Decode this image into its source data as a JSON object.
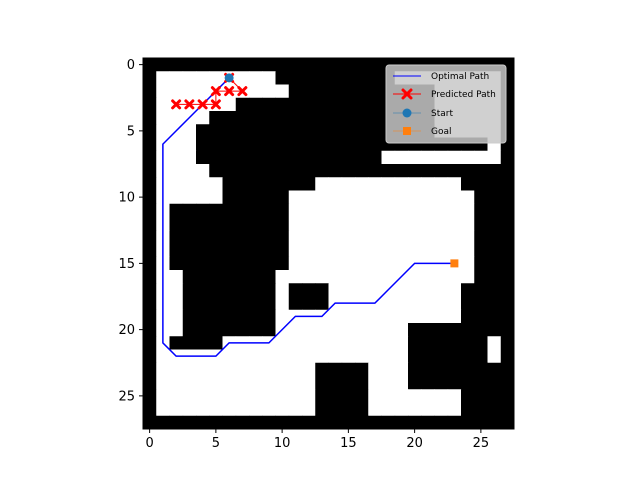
{
  "chart_data": {
    "type": "heatmap",
    "title": "",
    "xlabel": "",
    "ylabel": "",
    "grid": false,
    "legend_placement": "upper right",
    "x_range": [
      -0.5,
      27.5
    ],
    "y_range": [
      27.5,
      -0.5
    ],
    "x_ticks": [
      0,
      5,
      10,
      15,
      20,
      25
    ],
    "y_ticks": [
      0,
      5,
      10,
      15,
      20,
      25
    ],
    "grid_size": [
      28,
      28
    ],
    "obstacle_rows": [
      [
        0,
        0,
        0,
        0,
        0,
        0,
        0,
        0,
        0,
        0,
        0,
        0,
        0,
        0,
        0,
        0,
        0,
        0,
        0,
        0,
        0,
        0,
        0,
        0,
        0,
        0,
        0,
        0
      ],
      [
        0,
        1,
        1,
        1,
        1,
        1,
        1,
        1,
        1,
        1,
        0,
        0,
        0,
        0,
        0,
        0,
        0,
        0,
        0,
        1,
        1,
        1,
        1,
        1,
        1,
        1,
        1,
        0
      ],
      [
        0,
        1,
        1,
        1,
        1,
        1,
        1,
        1,
        1,
        1,
        1,
        0,
        0,
        0,
        0,
        0,
        0,
        0,
        0,
        0,
        0,
        0,
        1,
        1,
        1,
        1,
        1,
        0
      ],
      [
        0,
        1,
        1,
        1,
        1,
        1,
        1,
        0,
        0,
        0,
        0,
        0,
        0,
        0,
        0,
        0,
        0,
        0,
        0,
        0,
        0,
        0,
        1,
        1,
        1,
        1,
        1,
        0
      ],
      [
        0,
        1,
        1,
        1,
        1,
        0,
        0,
        0,
        0,
        0,
        0,
        0,
        0,
        0,
        0,
        0,
        0,
        0,
        0,
        0,
        0,
        0,
        1,
        1,
        1,
        1,
        1,
        0
      ],
      [
        0,
        1,
        1,
        1,
        0,
        0,
        0,
        0,
        0,
        0,
        0,
        0,
        0,
        0,
        0,
        0,
        0,
        0,
        0,
        0,
        0,
        0,
        1,
        1,
        1,
        1,
        1,
        0
      ],
      [
        0,
        1,
        1,
        1,
        0,
        0,
        0,
        0,
        0,
        0,
        0,
        0,
        0,
        0,
        0,
        0,
        0,
        0,
        0,
        0,
        0,
        0,
        0,
        0,
        0,
        0,
        1,
        0
      ],
      [
        0,
        1,
        1,
        1,
        0,
        0,
        0,
        0,
        0,
        0,
        0,
        0,
        0,
        0,
        0,
        0,
        0,
        0,
        1,
        1,
        1,
        1,
        1,
        1,
        1,
        1,
        1,
        0
      ],
      [
        0,
        1,
        1,
        1,
        1,
        0,
        0,
        0,
        0,
        0,
        0,
        0,
        0,
        0,
        0,
        0,
        0,
        0,
        0,
        0,
        0,
        0,
        0,
        0,
        0,
        0,
        0,
        0
      ],
      [
        0,
        1,
        1,
        1,
        1,
        1,
        0,
        0,
        0,
        0,
        0,
        0,
        0,
        1,
        1,
        1,
        1,
        1,
        1,
        1,
        1,
        1,
        1,
        1,
        0,
        0,
        0,
        0
      ],
      [
        0,
        1,
        1,
        1,
        1,
        1,
        0,
        0,
        0,
        0,
        0,
        1,
        1,
        1,
        1,
        1,
        1,
        1,
        1,
        1,
        1,
        1,
        1,
        1,
        1,
        0,
        0,
        0
      ],
      [
        0,
        1,
        0,
        0,
        0,
        0,
        0,
        0,
        0,
        0,
        0,
        1,
        1,
        1,
        1,
        1,
        1,
        1,
        1,
        1,
        1,
        1,
        1,
        1,
        1,
        0,
        0,
        0
      ],
      [
        0,
        1,
        0,
        0,
        0,
        0,
        0,
        0,
        0,
        0,
        0,
        1,
        1,
        1,
        1,
        1,
        1,
        1,
        1,
        1,
        1,
        1,
        1,
        1,
        1,
        0,
        0,
        0
      ],
      [
        0,
        1,
        0,
        0,
        0,
        0,
        0,
        0,
        0,
        0,
        0,
        1,
        1,
        1,
        1,
        1,
        1,
        1,
        1,
        1,
        1,
        1,
        1,
        1,
        1,
        0,
        0,
        0
      ],
      [
        0,
        1,
        0,
        0,
        0,
        0,
        0,
        0,
        0,
        0,
        0,
        1,
        1,
        1,
        1,
        1,
        1,
        1,
        1,
        1,
        1,
        1,
        1,
        1,
        1,
        0,
        0,
        0
      ],
      [
        0,
        1,
        0,
        0,
        0,
        0,
        0,
        0,
        0,
        0,
        0,
        1,
        1,
        1,
        1,
        1,
        1,
        1,
        1,
        1,
        1,
        1,
        1,
        1,
        1,
        0,
        0,
        0
      ],
      [
        0,
        1,
        1,
        0,
        0,
        0,
        0,
        0,
        0,
        0,
        1,
        1,
        1,
        1,
        1,
        1,
        1,
        1,
        1,
        1,
        1,
        1,
        1,
        1,
        1,
        0,
        0,
        0
      ],
      [
        0,
        1,
        1,
        0,
        0,
        0,
        0,
        0,
        0,
        0,
        1,
        0,
        0,
        0,
        1,
        1,
        1,
        1,
        1,
        1,
        1,
        1,
        1,
        1,
        0,
        0,
        0,
        0
      ],
      [
        0,
        1,
        1,
        0,
        0,
        0,
        0,
        0,
        0,
        0,
        1,
        0,
        0,
        0,
        1,
        1,
        1,
        1,
        1,
        1,
        1,
        1,
        1,
        1,
        0,
        0,
        0,
        0
      ],
      [
        0,
        1,
        1,
        0,
        0,
        0,
        0,
        0,
        0,
        0,
        1,
        1,
        1,
        1,
        1,
        1,
        1,
        1,
        1,
        1,
        1,
        1,
        1,
        1,
        0,
        0,
        0,
        0
      ],
      [
        0,
        1,
        1,
        0,
        0,
        0,
        0,
        0,
        0,
        0,
        1,
        1,
        1,
        1,
        1,
        1,
        1,
        1,
        1,
        1,
        0,
        0,
        0,
        0,
        0,
        0,
        0,
        0
      ],
      [
        0,
        1,
        0,
        0,
        0,
        0,
        1,
        1,
        1,
        1,
        1,
        1,
        1,
        1,
        1,
        1,
        1,
        1,
        1,
        1,
        0,
        0,
        0,
        0,
        0,
        0,
        1,
        0
      ],
      [
        0,
        1,
        1,
        1,
        1,
        1,
        1,
        1,
        1,
        1,
        1,
        1,
        1,
        1,
        1,
        1,
        1,
        1,
        1,
        1,
        0,
        0,
        0,
        0,
        0,
        0,
        1,
        0
      ],
      [
        0,
        1,
        1,
        1,
        1,
        1,
        1,
        1,
        1,
        1,
        1,
        1,
        1,
        0,
        0,
        0,
        0,
        1,
        1,
        1,
        0,
        0,
        0,
        0,
        0,
        0,
        0,
        0
      ],
      [
        0,
        1,
        1,
        1,
        1,
        1,
        1,
        1,
        1,
        1,
        1,
        1,
        1,
        0,
        0,
        0,
        0,
        1,
        1,
        1,
        0,
        0,
        0,
        0,
        0,
        0,
        0,
        0
      ],
      [
        0,
        1,
        1,
        1,
        1,
        1,
        1,
        1,
        1,
        1,
        1,
        1,
        1,
        0,
        0,
        0,
        0,
        1,
        1,
        1,
        1,
        1,
        1,
        1,
        0,
        0,
        0,
        0
      ],
      [
        0,
        1,
        1,
        1,
        1,
        1,
        1,
        1,
        1,
        1,
        1,
        1,
        1,
        0,
        0,
        0,
        0,
        1,
        1,
        1,
        1,
        1,
        1,
        1,
        0,
        0,
        0,
        0
      ],
      [
        0,
        0,
        0,
        0,
        0,
        0,
        0,
        0,
        0,
        0,
        0,
        0,
        0,
        0,
        0,
        0,
        0,
        0,
        0,
        0,
        0,
        0,
        0,
        0,
        0,
        0,
        0,
        0
      ]
    ],
    "series": [
      {
        "name": "Optimal Path",
        "kind": "line",
        "color": "#0000ff",
        "points": [
          [
            6,
            1
          ],
          [
            5,
            2
          ],
          [
            4,
            3
          ],
          [
            3,
            4
          ],
          [
            2,
            5
          ],
          [
            1,
            6
          ],
          [
            1,
            21
          ],
          [
            2,
            22
          ],
          [
            5,
            22
          ],
          [
            6,
            21
          ],
          [
            9,
            21
          ],
          [
            10,
            20
          ],
          [
            11,
            19
          ],
          [
            13,
            19
          ],
          [
            14,
            18
          ],
          [
            17,
            18
          ],
          [
            18,
            17
          ],
          [
            19,
            16
          ],
          [
            20,
            15
          ],
          [
            23,
            15
          ]
        ]
      },
      {
        "name": "Predicted Path",
        "kind": "line+marker",
        "color": "#ff0000",
        "marker": "x",
        "points": [
          [
            6,
            1
          ],
          [
            7,
            2
          ],
          [
            6,
            2
          ],
          [
            5,
            2
          ],
          [
            5,
            3
          ],
          [
            4,
            3
          ],
          [
            3,
            3
          ],
          [
            2,
            3
          ]
        ]
      },
      {
        "name": "Start",
        "kind": "marker",
        "color": "#1f77b4",
        "marker": "circle",
        "points": [
          [
            6,
            1
          ]
        ]
      },
      {
        "name": "Goal",
        "kind": "marker",
        "color": "#ff7f0e",
        "marker": "square",
        "points": [
          [
            23,
            15
          ]
        ]
      }
    ]
  }
}
